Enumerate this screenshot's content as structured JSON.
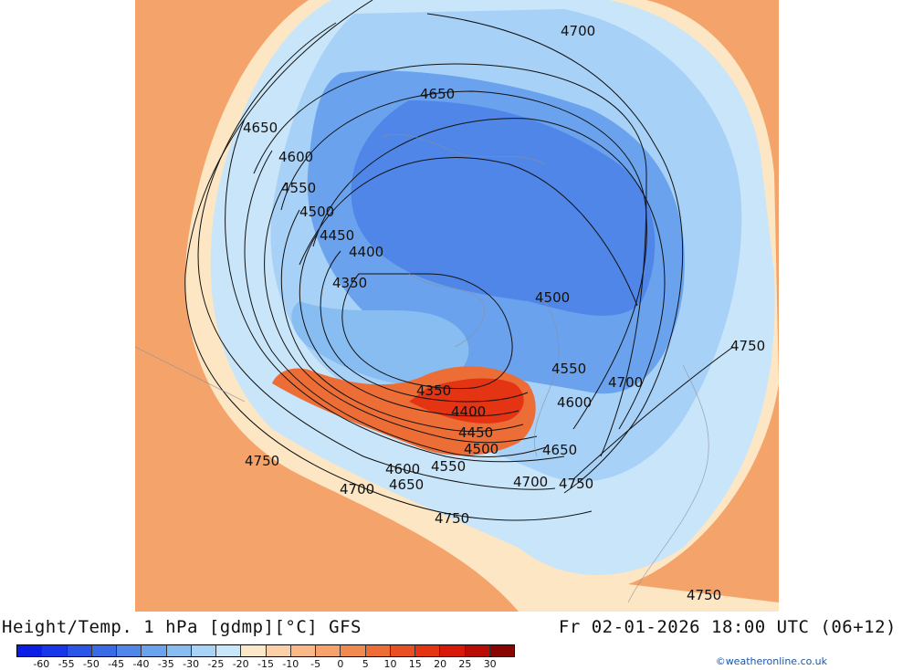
{
  "header": {
    "title": "Height/Temp. 1 hPa [gdmp][°C] GFS",
    "valid_time": "Fr 02-01-2026 18:00 UTC (06+12)"
  },
  "credit": "©weatheronline.co.uk",
  "colorbar": {
    "colors": [
      "#0a1ee6",
      "#1837e8",
      "#2a55e6",
      "#3a6be4",
      "#4f86e8",
      "#6aa2ee",
      "#88bdf2",
      "#a8d2f6",
      "#c8e6fa",
      "#fbe8c8",
      "#fcd0a6",
      "#f9b886",
      "#f5a26c",
      "#f08a50",
      "#ec6e36",
      "#e85024",
      "#e43414",
      "#d81808",
      "#b80c04",
      "#8a0402"
    ],
    "tick_labels": [
      "-60",
      "-55",
      "-50",
      "-45",
      "-40",
      "-35",
      "-30",
      "-25",
      "-20",
      "-15",
      "-10",
      "-5",
      "0",
      "5",
      "10",
      "15",
      "20",
      "25",
      "30"
    ]
  },
  "map": {
    "contour_labels": [
      "4700",
      "4650",
      "4650",
      "4600",
      "4550",
      "4500",
      "4450",
      "4400",
      "4350",
      "4500",
      "4750",
      "4550",
      "4700",
      "4600",
      "4350",
      "4400",
      "4450",
      "4500",
      "4650",
      "4550",
      "4750",
      "4600",
      "4700",
      "4650",
      "4750",
      "4700",
      "4750",
      "4750"
    ]
  }
}
